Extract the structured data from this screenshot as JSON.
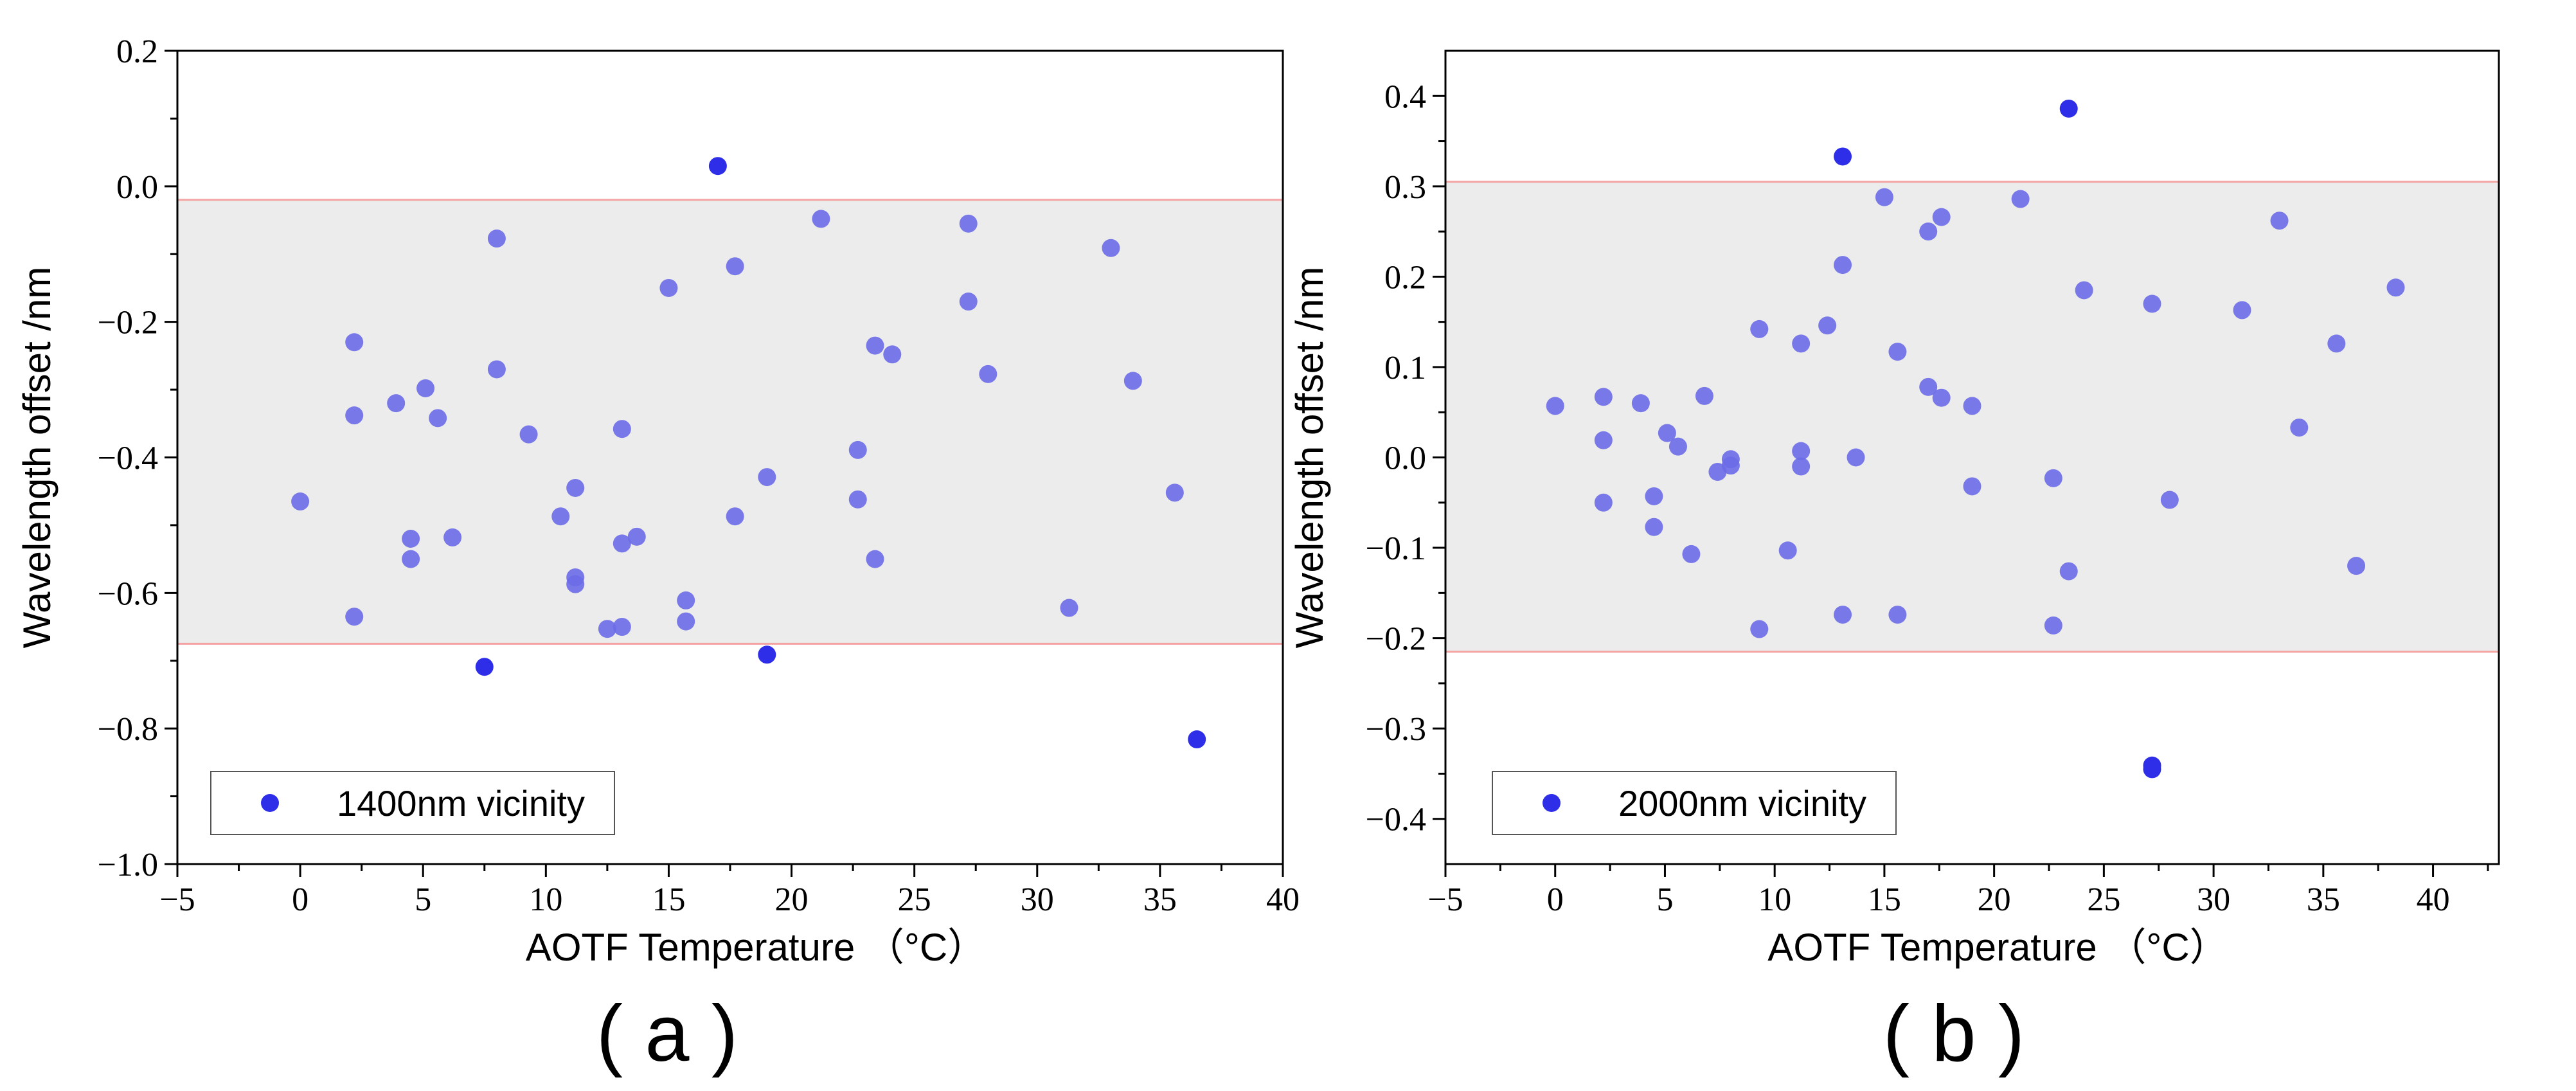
{
  "chart_data": [
    {
      "type": "scatter",
      "panel_label": "( a )",
      "xlabel": "AOTF Temperature （°C）",
      "ylabel": "Wavelength offset /nm",
      "xlim": [
        -5,
        40
      ],
      "ylim": [
        -1.0,
        0.2
      ],
      "xticks": [
        -5,
        0,
        5,
        10,
        15,
        20,
        25,
        30,
        35,
        40
      ],
      "xtick_labels": [
        "−5",
        "0",
        "5",
        "10",
        "15",
        "20",
        "25",
        "30",
        "35",
        "40"
      ],
      "yticks": [
        -1.0,
        -0.8,
        -0.6,
        -0.4,
        -0.2,
        0.0,
        0.2
      ],
      "ytick_labels": [
        "−1.0",
        "−0.8",
        "−0.6",
        "−0.4",
        "−0.2",
        "0.0",
        "0.2"
      ],
      "band": [
        -0.675,
        -0.02
      ],
      "legend": {
        "label": "1400nm vicinity",
        "position": "bottom-left"
      },
      "series": [
        {
          "name": "1400nm vicinity",
          "points": [
            [
              0,
              -0.465
            ],
            [
              2.2,
              -0.23
            ],
            [
              2.2,
              -0.338
            ],
            [
              2.2,
              -0.635
            ],
            [
              3.9,
              -0.32
            ],
            [
              4.5,
              -0.52
            ],
            [
              4.5,
              -0.55
            ],
            [
              5.1,
              -0.298
            ],
            [
              5.6,
              -0.342
            ],
            [
              6.2,
              -0.518
            ],
            [
              7.5,
              -0.709
            ],
            [
              8.0,
              -0.077
            ],
            [
              8.0,
              -0.27
            ],
            [
              9.3,
              -0.366
            ],
            [
              10.6,
              -0.487
            ],
            [
              11.2,
              -0.445
            ],
            [
              11.2,
              -0.577
            ],
            [
              11.2,
              -0.587
            ],
            [
              12.5,
              -0.653
            ],
            [
              13.1,
              -0.358
            ],
            [
              13.1,
              -0.527
            ],
            [
              13.1,
              -0.65
            ],
            [
              13.7,
              -0.517
            ],
            [
              15.0,
              -0.15
            ],
            [
              15.7,
              -0.611
            ],
            [
              15.7,
              -0.642
            ],
            [
              17.0,
              0.03
            ],
            [
              17.7,
              -0.118
            ],
            [
              17.7,
              -0.487
            ],
            [
              19.0,
              -0.429
            ],
            [
              19.0,
              -0.691
            ],
            [
              21.2,
              -0.048
            ],
            [
              22.7,
              -0.389
            ],
            [
              22.7,
              -0.462
            ],
            [
              23.4,
              -0.235
            ],
            [
              23.4,
              -0.55
            ],
            [
              24.1,
              -0.248
            ],
            [
              27.2,
              -0.055
            ],
            [
              27.2,
              -0.17
            ],
            [
              28.0,
              -0.277
            ],
            [
              31.3,
              -0.622
            ],
            [
              33.0,
              -0.091
            ],
            [
              33.9,
              -0.287
            ],
            [
              35.6,
              -0.452
            ],
            [
              36.5,
              -0.816
            ]
          ]
        }
      ]
    },
    {
      "type": "scatter",
      "panel_label": "( b )",
      "xlabel": "AOTF Temperature （°C）",
      "ylabel": "Wavelength offset /nm",
      "xlim": [
        -5,
        43
      ],
      "ylim": [
        -0.45,
        0.45
      ],
      "xticks": [
        -5,
        0,
        5,
        10,
        15,
        20,
        25,
        30,
        35,
        40
      ],
      "xtick_labels": [
        "−5",
        "0",
        "5",
        "10",
        "15",
        "20",
        "25",
        "30",
        "35",
        "40"
      ],
      "yticks": [
        -0.4,
        -0.3,
        -0.2,
        -0.1,
        0.0,
        0.1,
        0.2,
        0.3,
        0.4
      ],
      "ytick_labels": [
        "−0.4",
        "−0.3",
        "−0.2",
        "−0.1",
        "0.0",
        "0.1",
        "0.2",
        "0.3",
        "0.4"
      ],
      "band": [
        -0.215,
        0.305
      ],
      "legend": {
        "label": "2000nm vicinity",
        "position": "bottom-left"
      },
      "series": [
        {
          "name": "2000nm vicinity",
          "points": [
            [
              0,
              0.057
            ],
            [
              2.2,
              0.067
            ],
            [
              2.2,
              0.019
            ],
            [
              2.2,
              -0.05
            ],
            [
              3.9,
              0.06
            ],
            [
              4.5,
              -0.043
            ],
            [
              4.5,
              -0.077
            ],
            [
              5.1,
              0.027
            ],
            [
              5.6,
              0.012
            ],
            [
              6.2,
              -0.107
            ],
            [
              6.8,
              0.068
            ],
            [
              7.4,
              -0.016
            ],
            [
              8.0,
              -0.002
            ],
            [
              8.0,
              -0.009
            ],
            [
              9.3,
              0.142
            ],
            [
              9.3,
              -0.19
            ],
            [
              10.6,
              -0.103
            ],
            [
              11.2,
              0.126
            ],
            [
              11.2,
              0.007
            ],
            [
              11.2,
              -0.01
            ],
            [
              12.4,
              0.146
            ],
            [
              13.1,
              0.333
            ],
            [
              13.1,
              0.213
            ],
            [
              13.1,
              -0.174
            ],
            [
              13.7,
              0.0
            ],
            [
              15.0,
              0.288
            ],
            [
              15.6,
              0.117
            ],
            [
              15.6,
              -0.174
            ],
            [
              17.0,
              0.25
            ],
            [
              17.0,
              0.078
            ],
            [
              17.6,
              0.266
            ],
            [
              17.6,
              0.066
            ],
            [
              19.0,
              0.057
            ],
            [
              19.0,
              -0.032
            ],
            [
              21.2,
              0.286
            ],
            [
              22.7,
              -0.023
            ],
            [
              22.7,
              -0.186
            ],
            [
              23.4,
              0.386
            ],
            [
              23.4,
              -0.126
            ],
            [
              24.1,
              0.185
            ],
            [
              27.2,
              0.17
            ],
            [
              27.2,
              -0.341
            ],
            [
              27.2,
              -0.345
            ],
            [
              28.0,
              -0.047
            ],
            [
              31.3,
              0.163
            ],
            [
              33.0,
              0.262
            ],
            [
              33.9,
              0.033
            ],
            [
              35.6,
              0.126
            ],
            [
              36.5,
              -0.12
            ],
            [
              38.3,
              0.188
            ]
          ]
        }
      ]
    }
  ]
}
